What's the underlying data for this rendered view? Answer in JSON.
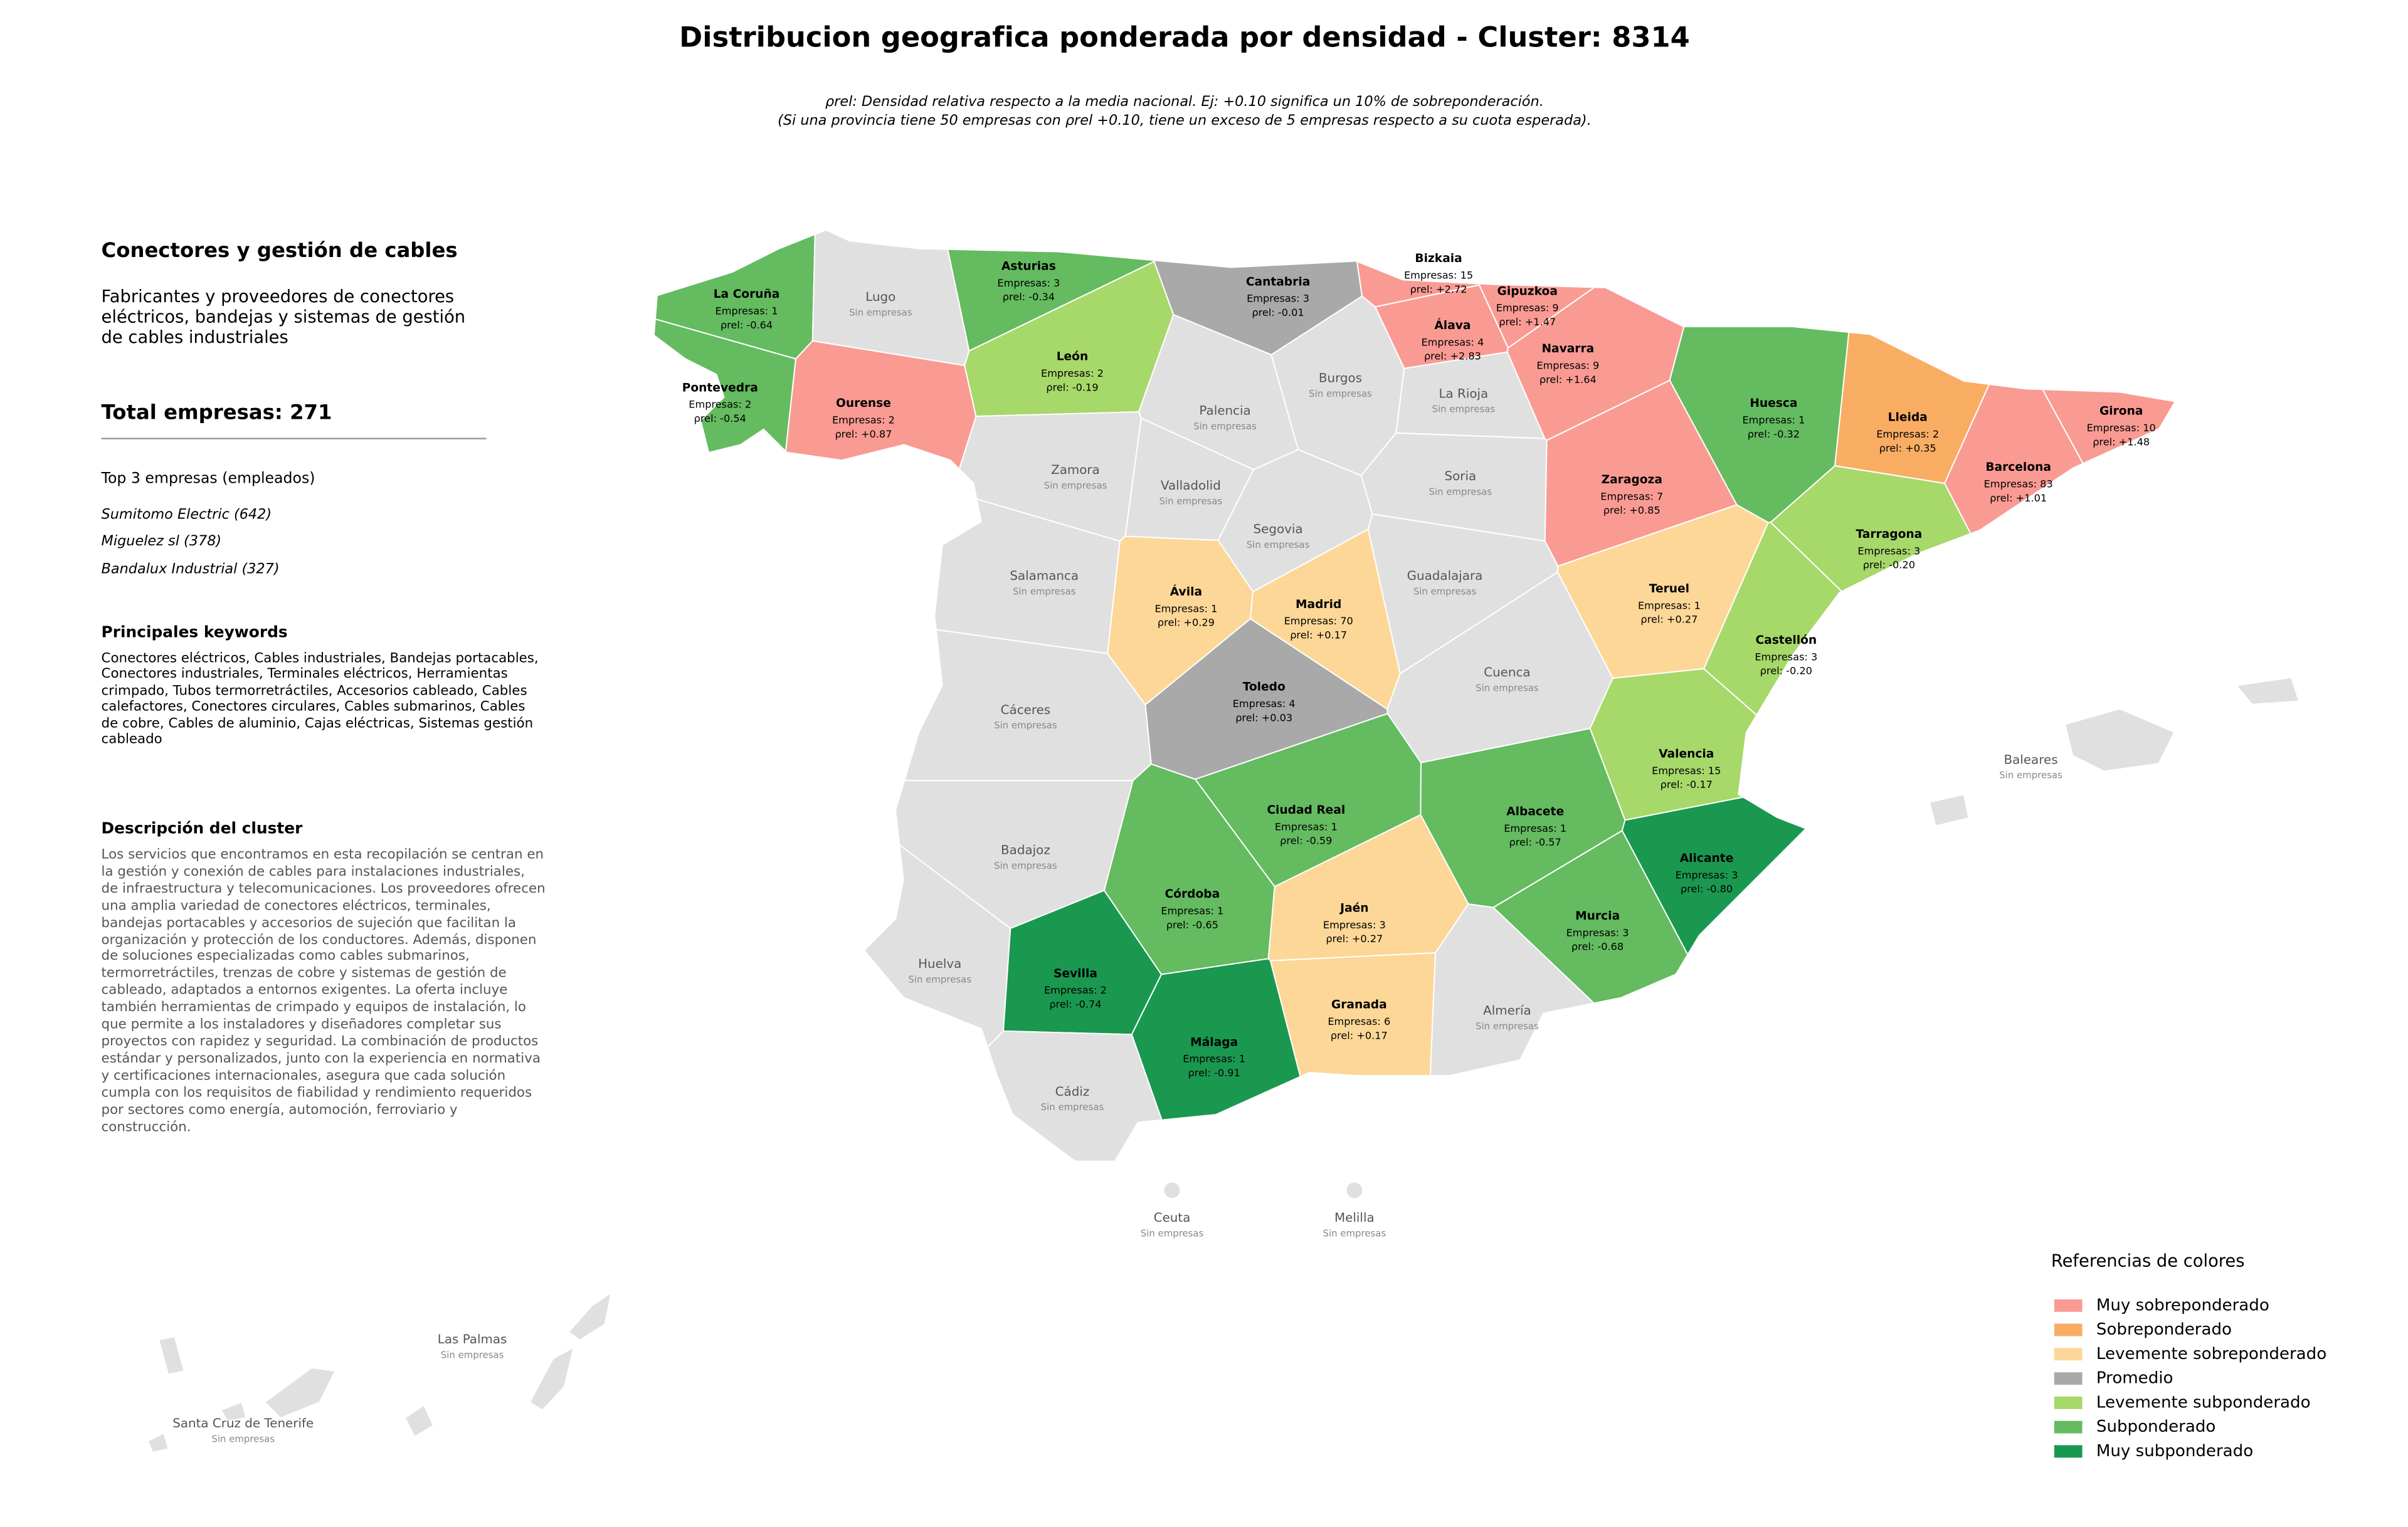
{
  "title": "Distribucion geografica ponderada por densidad - Cluster: 8314",
  "subtitle_lines": [
    "ρrel: Densidad relativa respecto a la media nacional. Ej: +0.10 significa un 10% de sobreponderación.",
    "(Si una provincia tiene 50 empresas con ρrel +0.10, tiene un exceso de 5 empresas respecto a su cuota esperada)."
  ],
  "sidebar": {
    "heading": "Conectores y gestión de cables",
    "description": "Fabricantes y proveedores de conectores eléctricos, bandejas y sistemas de gestión de cables industriales",
    "total": "Total empresas: 271",
    "top_heading": "Top 3 empresas (empleados)",
    "top_companies": [
      "Sumitomo Electric (642)",
      "Miguelez sl (378)",
      "Bandalux Industrial (327)"
    ],
    "keywords_heading": "Principales keywords",
    "keywords": "Conectores eléctricos, Cables industriales, Bandejas portacables, Conectores industriales, Terminales eléctricos, Herramientas crimpado, Tubos termorretráctiles, Accesorios cableado, Cables calefactores, Conectores circulares, Cables submarinos, Cables de cobre, Cables de aluminio, Cajas eléctricas, Sistemas gestión cableado",
    "cluster_heading": "Descripción del cluster",
    "cluster_description": "Los servicios que encontramos en esta recopilación se centran en la gestión y conexión de cables para instalaciones industriales, de infraestructura y telecomunicaciones. Los proveedores ofrecen una amplia variedad de conectores eléctricos, terminales, bandejas portacables y accesorios de sujeción que facilitan la organización y protección de los conductores. Además, disponen de soluciones especializadas como cables submarinos, termorretráctiles, trenzas de cobre y sistemas de gestión de cableado, adaptados a entornos exigentes. La oferta incluye también herramientas de crimpado y equipos de instalación, lo que permite a los instaladores y diseñadores completar sus proyectos con rapidez y seguridad. La combinación de productos estándar y personalizados, junto con la experiencia en normativa y certificaciones internacionales, asegura que cada solución cumpla con los requisitos de fiabilidad y rendimiento requeridos por sectores como energía, automoción, ferroviario y construcción."
  },
  "provinces": [
    {
      "name": "La Coruña",
      "empresas": "Empresas: 1",
      "rho": "ρrel: -0.64",
      "color": "#64bb60"
    },
    {
      "name": "Lugo",
      "note": "Sin empresas",
      "color": "#e0e0e0"
    },
    {
      "name": "Asturias",
      "empresas": "Empresas: 3",
      "rho": "ρrel: -0.34",
      "color": "#64bb60"
    },
    {
      "name": "Cantabria",
      "empresas": "Empresas: 3",
      "rho": "ρrel: -0.01",
      "color": "#a9a9a9"
    },
    {
      "name": "Bizkaia",
      "empresas": "Empresas: 15",
      "rho": "ρrel: +2.72",
      "color": "#f99b93"
    },
    {
      "name": "Gipuzkoa",
      "empresas": "Empresas: 9",
      "rho": "ρrel: +1.47",
      "color": "#f99b93"
    },
    {
      "name": "Álava",
      "empresas": "Empresas: 4",
      "rho": "ρrel: +2.83",
      "color": "#f99b93"
    },
    {
      "name": "Navarra",
      "empresas": "Empresas: 9",
      "rho": "ρrel: +1.64",
      "color": "#f99b93"
    },
    {
      "name": "Pontevedra",
      "empresas": "Empresas: 2",
      "rho": "ρrel: -0.54",
      "color": "#64bb60"
    },
    {
      "name": "Ourense",
      "empresas": "Empresas: 2",
      "rho": "ρrel: +0.87",
      "color": "#f99b93"
    },
    {
      "name": "León",
      "empresas": "Empresas: 2",
      "rho": "ρrel: -0.19",
      "color": "#a7d86a"
    },
    {
      "name": "Palencia",
      "note": "Sin empresas",
      "color": "#e0e0e0"
    },
    {
      "name": "Burgos",
      "note": "Sin empresas",
      "color": "#e0e0e0"
    },
    {
      "name": "La Rioja",
      "note": "Sin empresas",
      "color": "#e0e0e0"
    },
    {
      "name": "Huesca",
      "empresas": "Empresas: 1",
      "rho": "ρrel: -0.32",
      "color": "#64bb60"
    },
    {
      "name": "Lleida",
      "empresas": "Empresas: 2",
      "rho": "ρrel: +0.35",
      "color": "#f9ad63"
    },
    {
      "name": "Girona",
      "empresas": "Empresas: 10",
      "rho": "ρrel: +1.48",
      "color": "#f99b93"
    },
    {
      "name": "Barcelona",
      "empresas": "Empresas: 83",
      "rho": "ρrel: +1.01",
      "color": "#f99b93"
    },
    {
      "name": "Zamora",
      "note": "Sin empresas",
      "color": "#e0e0e0"
    },
    {
      "name": "Valladolid",
      "note": "Sin empresas",
      "color": "#e0e0e0"
    },
    {
      "name": "Soria",
      "note": "Sin empresas",
      "color": "#e0e0e0"
    },
    {
      "name": "Zaragoza",
      "empresas": "Empresas: 7",
      "rho": "ρrel: +0.85",
      "color": "#f99b93"
    },
    {
      "name": "Segovia",
      "note": "Sin empresas",
      "color": "#e0e0e0"
    },
    {
      "name": "Tarragona",
      "empresas": "Empresas: 3",
      "rho": "ρrel: -0.20",
      "color": "#a7d86a"
    },
    {
      "name": "Salamanca",
      "note": "Sin empresas",
      "color": "#e0e0e0"
    },
    {
      "name": "Guadalajara",
      "note": "Sin empresas",
      "color": "#e0e0e0"
    },
    {
      "name": "Ávila",
      "empresas": "Empresas: 1",
      "rho": "ρrel: +0.29",
      "color": "#fdd797"
    },
    {
      "name": "Madrid",
      "empresas": "Empresas: 70",
      "rho": "ρrel: +0.17",
      "color": "#fdd797"
    },
    {
      "name": "Teruel",
      "empresas": "Empresas: 1",
      "rho": "ρrel: +0.27",
      "color": "#fdd797"
    },
    {
      "name": "Castellón",
      "empresas": "Empresas: 3",
      "rho": "ρrel: -0.20",
      "color": "#a7d86a"
    },
    {
      "name": "Cuenca",
      "note": "Sin empresas",
      "color": "#e0e0e0"
    },
    {
      "name": "Toledo",
      "empresas": "Empresas: 4",
      "rho": "ρrel: +0.03",
      "color": "#a9a9a9"
    },
    {
      "name": "Cáceres",
      "note": "Sin empresas",
      "color": "#e0e0e0"
    },
    {
      "name": "Valencia",
      "empresas": "Empresas: 15",
      "rho": "ρrel: -0.17",
      "color": "#a7d86a"
    },
    {
      "name": "Baleares",
      "note": "Sin empresas",
      "color": "#e0e0e0"
    },
    {
      "name": "Ciudad Real",
      "empresas": "Empresas: 1",
      "rho": "ρrel: -0.59",
      "color": "#64bb60"
    },
    {
      "name": "Albacete",
      "empresas": "Empresas: 1",
      "rho": "ρrel: -0.57",
      "color": "#64bb60"
    },
    {
      "name": "Badajoz",
      "note": "Sin empresas",
      "color": "#e0e0e0"
    },
    {
      "name": "Alicante",
      "empresas": "Empresas: 3",
      "rho": "ρrel: -0.80",
      "color": "#1a9850"
    },
    {
      "name": "Córdoba",
      "empresas": "Empresas: 1",
      "rho": "ρrel: -0.65",
      "color": "#64bb60"
    },
    {
      "name": "Jaén",
      "empresas": "Empresas: 3",
      "rho": "ρrel: +0.27",
      "color": "#fdd797"
    },
    {
      "name": "Murcia",
      "empresas": "Empresas: 3",
      "rho": "ρrel: -0.68",
      "color": "#64bb60"
    },
    {
      "name": "Huelva",
      "note": "Sin empresas",
      "color": "#e0e0e0"
    },
    {
      "name": "Sevilla",
      "empresas": "Empresas: 2",
      "rho": "ρrel: -0.74",
      "color": "#1a9850"
    },
    {
      "name": "Granada",
      "empresas": "Empresas: 6",
      "rho": "ρrel: +0.17",
      "color": "#fdd797"
    },
    {
      "name": "Almería",
      "note": "Sin empresas",
      "color": "#e0e0e0"
    },
    {
      "name": "Málaga",
      "empresas": "Empresas: 1",
      "rho": "ρrel: -0.91",
      "color": "#1a9850"
    },
    {
      "name": "Cádiz",
      "note": "Sin empresas",
      "color": "#e0e0e0"
    },
    {
      "name": "Ceuta",
      "note": "Sin empresas",
      "color": "#e0e0e0"
    },
    {
      "name": "Melilla",
      "note": "Sin empresas",
      "color": "#e0e0e0"
    },
    {
      "name": "Las Palmas",
      "note": "Sin empresas",
      "color": "#e0e0e0"
    },
    {
      "name": "Santa Cruz de Tenerife",
      "note": "Sin empresas",
      "color": "#e0e0e0"
    }
  ],
  "legend": {
    "title": "Referencias de colores",
    "items": [
      {
        "label": "Muy sobreponderado",
        "color": "#f99b93"
      },
      {
        "label": "Sobreponderado",
        "color": "#f9ad63"
      },
      {
        "label": "Levemente sobreponderado",
        "color": "#fdd797"
      },
      {
        "label": "Promedio",
        "color": "#a9a9a9"
      },
      {
        "label": "Levemente subponderado",
        "color": "#a7d86a"
      },
      {
        "label": "Subponderado",
        "color": "#64bb60"
      },
      {
        "label": "Muy subponderado",
        "color": "#1a9850"
      }
    ]
  }
}
